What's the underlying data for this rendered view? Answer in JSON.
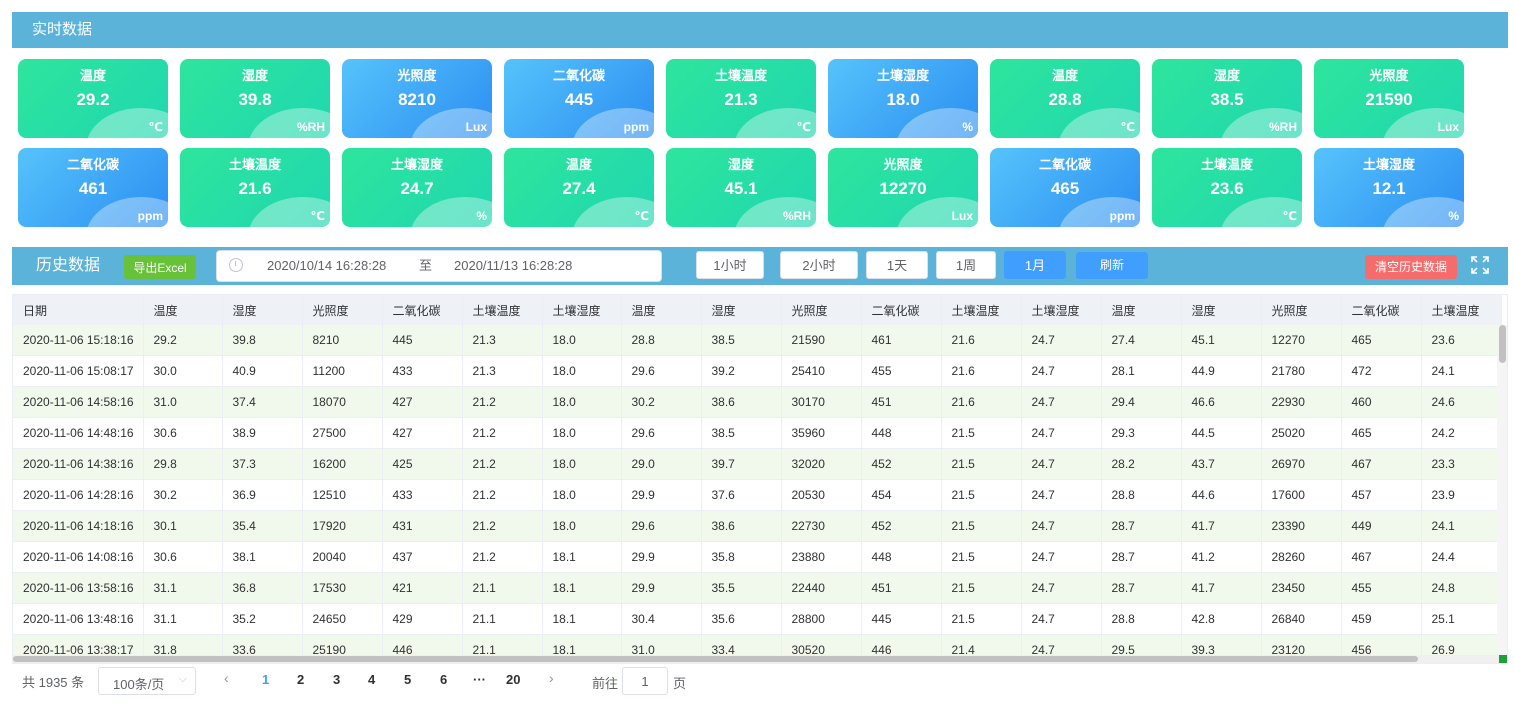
{
  "realtime": {
    "title": "实时数据",
    "cards": [
      {
        "name": "温度",
        "value": "29.2",
        "unit": "℃",
        "color": "green"
      },
      {
        "name": "湿度",
        "value": "39.8",
        "unit": "%RH",
        "color": "green"
      },
      {
        "name": "光照度",
        "value": "8210",
        "unit": "Lux",
        "color": "blue"
      },
      {
        "name": "二氧化碳",
        "value": "445",
        "unit": "ppm",
        "color": "blue"
      },
      {
        "name": "土壤温度",
        "value": "21.3",
        "unit": "℃",
        "color": "green"
      },
      {
        "name": "土壤湿度",
        "value": "18.0",
        "unit": "%",
        "color": "blue"
      },
      {
        "name": "温度",
        "value": "28.8",
        "unit": "℃",
        "color": "green"
      },
      {
        "name": "湿度",
        "value": "38.5",
        "unit": "%RH",
        "color": "green"
      },
      {
        "name": "光照度",
        "value": "21590",
        "unit": "Lux",
        "color": "green"
      },
      {
        "name": "二氧化碳",
        "value": "461",
        "unit": "ppm",
        "color": "blue"
      },
      {
        "name": "土壤温度",
        "value": "21.6",
        "unit": "℃",
        "color": "green"
      },
      {
        "name": "土壤湿度",
        "value": "24.7",
        "unit": "%",
        "color": "green"
      },
      {
        "name": "温度",
        "value": "27.4",
        "unit": "℃",
        "color": "green"
      },
      {
        "name": "湿度",
        "value": "45.1",
        "unit": "%RH",
        "color": "green"
      },
      {
        "name": "光照度",
        "value": "12270",
        "unit": "Lux",
        "color": "green"
      },
      {
        "name": "二氧化碳",
        "value": "465",
        "unit": "ppm",
        "color": "blue"
      },
      {
        "name": "土壤温度",
        "value": "23.6",
        "unit": "℃",
        "color": "green"
      },
      {
        "name": "土壤湿度",
        "value": "12.1",
        "unit": "%",
        "color": "blue"
      }
    ]
  },
  "history": {
    "title": "历史数据",
    "export_label": "导出Excel",
    "range_start": "2020/10/14 16:28:28",
    "range_sep": "至",
    "range_end": "2020/11/13 16:28:28",
    "periods": [
      {
        "label": "1小时",
        "active": false
      },
      {
        "label": "2小时",
        "active": false
      },
      {
        "label": "1天",
        "active": false
      },
      {
        "label": "1周",
        "active": false
      },
      {
        "label": "1月",
        "active": true
      }
    ],
    "refresh_label": "刷新",
    "clear_label": "清空历史数据",
    "fullscreen_icon": "fullscreen-icon"
  },
  "table": {
    "headers": [
      "日期",
      "温度",
      "湿度",
      "光照度",
      "二氧化碳",
      "土壤温度",
      "土壤湿度",
      "温度",
      "湿度",
      "光照度",
      "二氧化碳",
      "土壤温度",
      "土壤湿度",
      "温度",
      "湿度",
      "光照度",
      "二氧化碳",
      "土壤温度"
    ],
    "rows": [
      [
        "2020-11-06 15:18:16",
        "29.2",
        "39.8",
        "8210",
        "445",
        "21.3",
        "18.0",
        "28.8",
        "38.5",
        "21590",
        "461",
        "21.6",
        "24.7",
        "27.4",
        "45.1",
        "12270",
        "465",
        "23.6"
      ],
      [
        "2020-11-06 15:08:17",
        "30.0",
        "40.9",
        "11200",
        "433",
        "21.3",
        "18.0",
        "29.6",
        "39.2",
        "25410",
        "455",
        "21.6",
        "24.7",
        "28.1",
        "44.9",
        "21780",
        "472",
        "24.1"
      ],
      [
        "2020-11-06 14:58:16",
        "31.0",
        "37.4",
        "18070",
        "427",
        "21.2",
        "18.0",
        "30.2",
        "38.6",
        "30170",
        "451",
        "21.6",
        "24.7",
        "29.4",
        "46.6",
        "22930",
        "460",
        "24.6"
      ],
      [
        "2020-11-06 14:48:16",
        "30.6",
        "38.9",
        "27500",
        "427",
        "21.2",
        "18.0",
        "29.6",
        "38.5",
        "35960",
        "448",
        "21.5",
        "24.7",
        "29.3",
        "44.5",
        "25020",
        "465",
        "24.2"
      ],
      [
        "2020-11-06 14:38:16",
        "29.8",
        "37.3",
        "16200",
        "425",
        "21.2",
        "18.0",
        "29.0",
        "39.7",
        "32020",
        "452",
        "21.5",
        "24.7",
        "28.2",
        "43.7",
        "26970",
        "467",
        "23.3"
      ],
      [
        "2020-11-06 14:28:16",
        "30.2",
        "36.9",
        "12510",
        "433",
        "21.2",
        "18.0",
        "29.9",
        "37.6",
        "20530",
        "454",
        "21.5",
        "24.7",
        "28.8",
        "44.6",
        "17600",
        "457",
        "23.9"
      ],
      [
        "2020-11-06 14:18:16",
        "30.1",
        "35.4",
        "17920",
        "431",
        "21.2",
        "18.0",
        "29.6",
        "38.6",
        "22730",
        "452",
        "21.5",
        "24.7",
        "28.7",
        "41.7",
        "23390",
        "449",
        "24.1"
      ],
      [
        "2020-11-06 14:08:16",
        "30.6",
        "38.1",
        "20040",
        "437",
        "21.2",
        "18.1",
        "29.9",
        "35.8",
        "23880",
        "448",
        "21.5",
        "24.7",
        "28.7",
        "41.2",
        "28260",
        "467",
        "24.4"
      ],
      [
        "2020-11-06 13:58:16",
        "31.1",
        "36.8",
        "17530",
        "421",
        "21.1",
        "18.1",
        "29.9",
        "35.5",
        "22440",
        "451",
        "21.5",
        "24.7",
        "28.7",
        "41.7",
        "23450",
        "455",
        "24.8"
      ],
      [
        "2020-11-06 13:48:16",
        "31.1",
        "35.2",
        "24650",
        "429",
        "21.1",
        "18.1",
        "30.4",
        "35.6",
        "28800",
        "445",
        "21.5",
        "24.7",
        "28.8",
        "42.8",
        "26840",
        "459",
        "25.1"
      ],
      [
        "2020-11-06 13:38:17",
        "31.8",
        "33.6",
        "25190",
        "446",
        "21.1",
        "18.1",
        "31.0",
        "33.4",
        "30520",
        "446",
        "21.4",
        "24.7",
        "29.5",
        "39.3",
        "23120",
        "456",
        "26.9"
      ]
    ]
  },
  "pagination": {
    "total_text": "共 1935 条",
    "page_size": "100条/页",
    "pages": [
      "1",
      "2",
      "3",
      "4",
      "5",
      "6",
      "···",
      "20"
    ],
    "current": "1",
    "prev_icon": "chevron-left-icon",
    "next_icon": "chevron-right-icon",
    "goto_label": "前往",
    "goto_value": "1",
    "page_suffix": "页"
  }
}
